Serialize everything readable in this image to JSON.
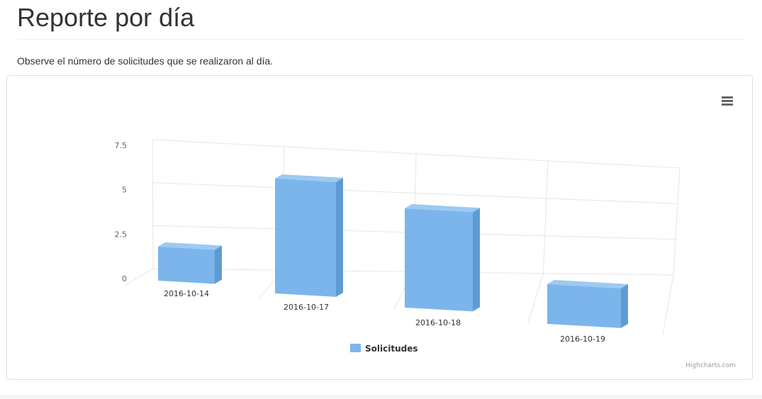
{
  "header": {
    "title": "Reporte por día",
    "description": "Observe el número de solicitudes que se realizaron al día."
  },
  "chart_data": {
    "type": "bar",
    "title": "",
    "xlabel": "",
    "ylabel": "",
    "categories": [
      "2016-10-14",
      "2016-10-17",
      "2016-10-18",
      "2016-10-19"
    ],
    "series": [
      {
        "name": "Solicitudes",
        "values": [
          2,
          6,
          5,
          2
        ]
      }
    ],
    "y_ticks": [
      "0",
      "2.5",
      "5",
      "7.5"
    ],
    "ylim": [
      0,
      7.5
    ],
    "grid": true,
    "three_d": true,
    "legend": "bottom-center",
    "colors": {
      "bar": "#7cb5ec",
      "bar_side": "#5f9bd3",
      "bar_top": "#9ccaf2"
    },
    "credits": "Highcharts.com",
    "menu_icon": "hamburger-menu-icon"
  }
}
